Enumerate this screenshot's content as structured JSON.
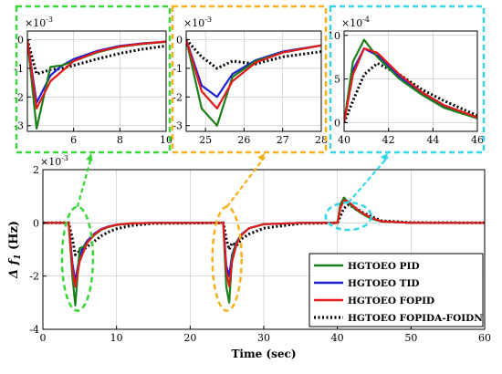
{
  "chart_data": [
    {
      "type": "line",
      "panel": "main",
      "xlabel": "Time (sec)",
      "ylabel": "Δ f₁ (Hz)",
      "ylabel_parts": {
        "delta": "Δ",
        "f": "f",
        "sub": "1",
        "unit": "(Hz)"
      },
      "exponent": "×10⁻³",
      "exponent_parts": {
        "base": "×10",
        "power": "-3"
      },
      "xlim": [
        0,
        60
      ],
      "ylim": [
        -4,
        2
      ],
      "xticks": [
        0,
        10,
        20,
        30,
        40,
        50,
        60
      ],
      "yticks": [
        -4,
        -2,
        0,
        2
      ],
      "xtick_labels": [
        "0",
        "10",
        "20",
        "30",
        "40",
        "50",
        "60"
      ],
      "ytick_labels": [
        "-4",
        "-2",
        "0",
        "2"
      ],
      "grid": true,
      "legend_position": "bottom-right",
      "series": [
        {
          "name": "HGTOEO PID",
          "color": "#1a7f1a",
          "style": "solid",
          "x": [
            0,
            3.5,
            4.0,
            4.4,
            5.0,
            5.5,
            6.0,
            7.0,
            8.0,
            9.0,
            10.0,
            12.0,
            15.0,
            24.5,
            24.9,
            25.3,
            25.7,
            26.3,
            27.0,
            28.0,
            30.0,
            35.0,
            40.0,
            40.4,
            40.9,
            41.5,
            42.5,
            43.5,
            44.5,
            46.0,
            50.0,
            60.0
          ],
          "y": [
            0,
            0,
            -2.0,
            -3.1,
            -0.95,
            -0.9,
            -0.75,
            -0.45,
            -0.25,
            -0.15,
            -0.08,
            -0.02,
            0,
            0,
            -2.4,
            -3.0,
            -1.3,
            -0.75,
            -0.45,
            -0.2,
            -0.05,
            0,
            0,
            0.7,
            0.95,
            0.75,
            0.5,
            0.32,
            0.17,
            0.05,
            0,
            0
          ]
        },
        {
          "name": "HGTOEO TID",
          "color": "#1f1fd6",
          "style": "solid",
          "x": [
            0,
            3.5,
            4.0,
            4.4,
            5.0,
            5.5,
            6.0,
            7.0,
            8.0,
            9.0,
            10.0,
            12.0,
            15.0,
            24.5,
            24.9,
            25.3,
            25.7,
            26.3,
            27.0,
            28.0,
            30.0,
            35.0,
            40.0,
            40.4,
            40.9,
            41.5,
            42.5,
            43.5,
            44.5,
            46.0,
            50.0,
            60.0
          ],
          "y": [
            0,
            0,
            -1.5,
            -2.2,
            -1.25,
            -0.9,
            -0.68,
            -0.4,
            -0.22,
            -0.13,
            -0.07,
            -0.02,
            0,
            0,
            -1.6,
            -2.0,
            -1.2,
            -0.72,
            -0.42,
            -0.2,
            -0.05,
            0,
            0,
            0.6,
            0.85,
            0.77,
            0.52,
            0.33,
            0.18,
            0.05,
            0,
            0
          ]
        },
        {
          "name": "HGTOEO FOPID",
          "color": "#e31a1a",
          "style": "solid",
          "x": [
            0,
            3.5,
            4.0,
            4.4,
            5.0,
            5.5,
            6.0,
            7.0,
            8.0,
            9.0,
            10.0,
            12.0,
            15.0,
            24.5,
            24.9,
            25.3,
            25.7,
            26.3,
            27.0,
            28.0,
            30.0,
            35.0,
            40.0,
            40.4,
            40.9,
            41.5,
            42.5,
            43.5,
            44.5,
            46.0,
            50.0,
            60.0
          ],
          "y": [
            0,
            0,
            -1.7,
            -2.4,
            -1.45,
            -1.1,
            -0.75,
            -0.43,
            -0.24,
            -0.14,
            -0.07,
            -0.02,
            0,
            0,
            -1.8,
            -2.4,
            -1.45,
            -0.8,
            -0.45,
            -0.2,
            -0.05,
            0,
            0,
            0.55,
            0.85,
            0.8,
            0.55,
            0.35,
            0.2,
            0.06,
            0,
            0
          ]
        },
        {
          "name": "HGTOEO FOPIDA-FOIDN",
          "color": "#000000",
          "style": "dotted",
          "x": [
            0,
            3.5,
            4.0,
            4.4,
            5.0,
            5.5,
            6.0,
            7.0,
            8.0,
            9.0,
            10.0,
            12.0,
            15.0,
            24.5,
            24.9,
            25.3,
            25.7,
            26.3,
            27.0,
            28.0,
            30.0,
            35.0,
            40.0,
            40.4,
            40.9,
            41.5,
            42.5,
            43.5,
            44.5,
            46.0,
            50.0,
            60.0
          ],
          "y": [
            0,
            0,
            -0.6,
            -1.2,
            -1.05,
            -1.0,
            -0.9,
            -0.68,
            -0.48,
            -0.33,
            -0.22,
            -0.1,
            -0.02,
            0,
            -0.6,
            -1.0,
            -0.75,
            -0.85,
            -0.6,
            -0.42,
            -0.2,
            -0.02,
            0,
            0.25,
            0.55,
            0.68,
            0.55,
            0.38,
            0.25,
            0.08,
            0.01,
            0
          ]
        }
      ]
    },
    {
      "type": "line",
      "panel": "zoom-1",
      "xlim": [
        4,
        10
      ],
      "ylim": [
        -3.2,
        0.3
      ],
      "xticks": [
        6,
        8,
        10
      ],
      "yticks": [
        -3,
        -2,
        -1,
        0
      ],
      "xtick_labels": [
        "6",
        "8",
        "10"
      ],
      "ytick_labels": [
        "-3",
        "-2",
        "-1",
        "0"
      ],
      "exponent": "×10⁻³",
      "exponent_parts": {
        "base": "×10",
        "power": "-3"
      },
      "grid": true,
      "series": [
        {
          "name": "HGTOEO PID",
          "x": [
            4.0,
            4.4,
            5.0,
            5.5,
            6.0,
            7.0,
            8.0,
            9.0,
            10.0
          ],
          "y": [
            0,
            -3.1,
            -0.95,
            -0.9,
            -0.75,
            -0.45,
            -0.25,
            -0.15,
            -0.08
          ]
        },
        {
          "name": "HGTOEO TID",
          "x": [
            4.0,
            4.4,
            5.0,
            5.5,
            6.0,
            7.0,
            8.0,
            9.0,
            10.0
          ],
          "y": [
            0,
            -2.2,
            -1.25,
            -0.9,
            -0.68,
            -0.4,
            -0.22,
            -0.13,
            -0.07
          ]
        },
        {
          "name": "HGTOEO FOPID",
          "x": [
            4.0,
            4.4,
            5.0,
            5.5,
            6.0,
            7.0,
            8.0,
            9.0,
            10.0
          ],
          "y": [
            0,
            -2.4,
            -1.45,
            -1.1,
            -0.75,
            -0.43,
            -0.24,
            -0.14,
            -0.07
          ]
        },
        {
          "name": "HGTOEO FOPIDA-FOIDN",
          "x": [
            4.0,
            4.4,
            5.0,
            5.5,
            6.0,
            7.0,
            8.0,
            9.0,
            10.0
          ],
          "y": [
            0,
            -1.2,
            -1.05,
            -1.0,
            -0.9,
            -0.68,
            -0.48,
            -0.33,
            -0.22
          ]
        }
      ]
    },
    {
      "type": "line",
      "panel": "zoom-2",
      "xlim": [
        24.5,
        28
      ],
      "ylim": [
        -3.2,
        0.3
      ],
      "xticks": [
        25,
        26,
        27,
        28
      ],
      "yticks": [
        -3,
        -2,
        -1,
        0
      ],
      "xtick_labels": [
        "25",
        "26",
        "27",
        "28"
      ],
      "ytick_labels": [
        "-3",
        "-2",
        "-1",
        "0"
      ],
      "exponent": "×10⁻³",
      "exponent_parts": {
        "base": "×10",
        "power": "-3"
      },
      "grid": true,
      "series": [
        {
          "name": "HGTOEO PID",
          "x": [
            24.5,
            24.9,
            25.3,
            25.7,
            26.3,
            27.0,
            28.0
          ],
          "y": [
            0,
            -2.4,
            -3.0,
            -1.3,
            -0.75,
            -0.45,
            -0.2
          ]
        },
        {
          "name": "HGTOEO TID",
          "x": [
            24.5,
            24.9,
            25.3,
            25.7,
            26.3,
            27.0,
            28.0
          ],
          "y": [
            0,
            -1.6,
            -2.0,
            -1.2,
            -0.72,
            -0.42,
            -0.2
          ]
        },
        {
          "name": "HGTOEO FOPID",
          "x": [
            24.5,
            24.9,
            25.3,
            25.7,
            26.3,
            27.0,
            28.0
          ],
          "y": [
            0,
            -1.8,
            -2.4,
            -1.45,
            -0.8,
            -0.45,
            -0.2
          ]
        },
        {
          "name": "HGTOEO FOPIDA-FOIDN",
          "x": [
            24.5,
            24.9,
            25.3,
            25.7,
            26.3,
            27.0,
            28.0
          ],
          "y": [
            0,
            -0.6,
            -1.0,
            -0.75,
            -0.85,
            -0.6,
            -0.42
          ]
        }
      ]
    },
    {
      "type": "line",
      "panel": "zoom-3",
      "xlim": [
        40,
        46
      ],
      "ylim": [
        -1,
        10.5
      ],
      "xticks": [
        40,
        42,
        44,
        46
      ],
      "yticks": [
        0,
        5,
        10
      ],
      "xtick_labels": [
        "40",
        "42",
        "44",
        "46"
      ],
      "ytick_labels": [
        "0",
        "5",
        "10"
      ],
      "exponent": "×10⁻⁴",
      "exponent_parts": {
        "base": "×10",
        "power": "-4"
      },
      "grid": true,
      "series": [
        {
          "name": "HGTOEO PID",
          "x": [
            40.0,
            40.4,
            40.9,
            41.5,
            42.5,
            43.5,
            44.5,
            46.0
          ],
          "y": [
            0,
            7.0,
            9.5,
            7.5,
            5.0,
            3.2,
            1.7,
            0.5
          ]
        },
        {
          "name": "HGTOEO TID",
          "x": [
            40.0,
            40.4,
            40.9,
            41.5,
            42.5,
            43.5,
            44.5,
            46.0
          ],
          "y": [
            0,
            6.0,
            8.5,
            7.7,
            5.2,
            3.3,
            1.8,
            0.5
          ]
        },
        {
          "name": "HGTOEO FOPID",
          "x": [
            40.0,
            40.4,
            40.9,
            41.5,
            42.5,
            43.5,
            44.5,
            46.0
          ],
          "y": [
            0,
            5.5,
            8.5,
            8.0,
            5.5,
            3.5,
            2.0,
            0.6
          ]
        },
        {
          "name": "HGTOEO FOPIDA-FOIDN",
          "x": [
            40.0,
            40.4,
            40.9,
            41.5,
            42.5,
            43.5,
            44.5,
            46.0
          ],
          "y": [
            0,
            2.5,
            5.5,
            6.8,
            5.5,
            3.8,
            2.5,
            0.8
          ]
        }
      ]
    }
  ]
}
